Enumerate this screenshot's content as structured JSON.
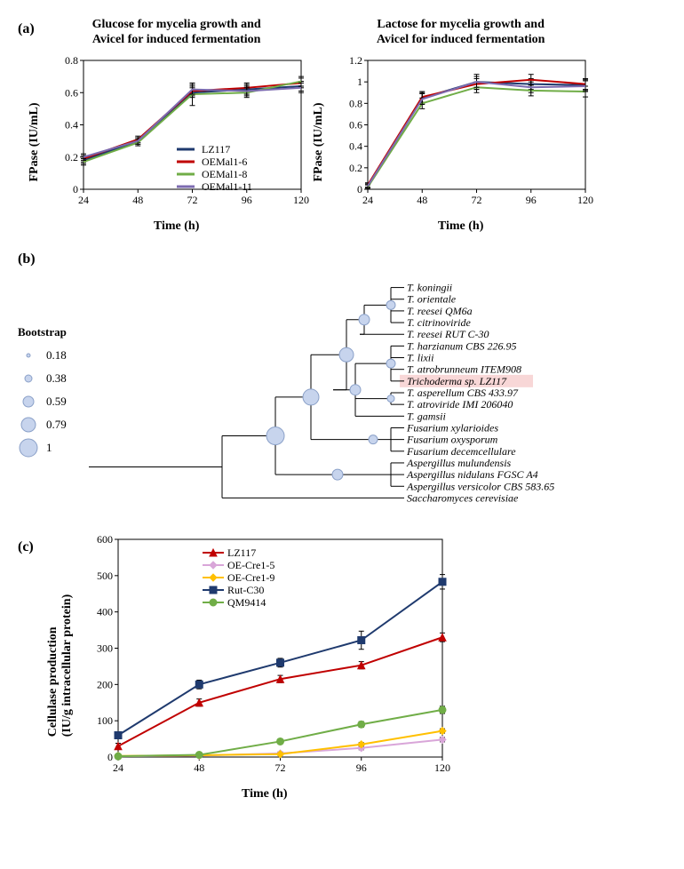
{
  "panel_a": {
    "label": "(a)",
    "chart_left": {
      "type": "line",
      "title_l1": "Glucose  for mycelia growth and",
      "title_l2": "Avicel for induced fermentation",
      "xlabel": "Time (h)",
      "ylabel": "FPase (IU/mL)",
      "x_ticks": [
        24,
        48,
        72,
        96,
        120
      ],
      "y_ticks": [
        0,
        0.2,
        0.4,
        0.6,
        0.8
      ],
      "ylim": [
        0,
        0.8
      ],
      "xlim": [
        24,
        120
      ],
      "background_color": "#ffffff",
      "border_color": "#000000",
      "series": [
        {
          "name": "LZ117",
          "color": "#1f3a6e",
          "values": [
            0.18,
            0.3,
            0.6,
            0.62,
            0.64
          ],
          "error": [
            0.02,
            0.02,
            0.03,
            0.03,
            0.03
          ]
        },
        {
          "name": "OEMal1-6",
          "color": "#c00000",
          "values": [
            0.19,
            0.31,
            0.61,
            0.63,
            0.66
          ],
          "error": [
            0.02,
            0.02,
            0.03,
            0.03,
            0.03
          ]
        },
        {
          "name": "OEMal1-8",
          "color": "#70ad47",
          "values": [
            0.17,
            0.29,
            0.59,
            0.6,
            0.67
          ],
          "error": [
            0.02,
            0.02,
            0.07,
            0.03,
            0.03
          ]
        },
        {
          "name": "OEMal1-11",
          "color": "#7c6bb0",
          "values": [
            0.2,
            0.3,
            0.62,
            0.61,
            0.63
          ],
          "error": [
            0.02,
            0.02,
            0.03,
            0.03,
            0.03
          ]
        }
      ],
      "legend_pos": "inner-lower-right",
      "line_width": 2
    },
    "chart_right": {
      "type": "line",
      "title_l1": "Lactose for mycelia growth and",
      "title_l2": "Avicel for induced fermentation",
      "xlabel": "Time (h)",
      "ylabel": "FPase (IU/mL)",
      "x_ticks": [
        24,
        48,
        72,
        96,
        120
      ],
      "y_ticks": [
        0.0,
        0.2,
        0.4,
        0.6,
        0.8,
        1.0,
        1.2
      ],
      "ylim": [
        0,
        1.2
      ],
      "xlim": [
        24,
        120
      ],
      "background_color": "#ffffff",
      "border_color": "#000000",
      "series": [
        {
          "name": "LZ117",
          "color": "#1f3a6e",
          "values": [
            0.03,
            0.85,
            1.0,
            0.98,
            0.97
          ],
          "error": [
            0.02,
            0.05,
            0.07,
            0.05,
            0.05
          ]
        },
        {
          "name": "OEMal1-6",
          "color": "#c00000",
          "values": [
            0.04,
            0.86,
            0.98,
            1.02,
            0.98
          ],
          "error": [
            0.02,
            0.05,
            0.05,
            0.05,
            0.05
          ]
        },
        {
          "name": "OEMal1-8",
          "color": "#70ad47",
          "values": [
            0.02,
            0.8,
            0.95,
            0.92,
            0.91
          ],
          "error": [
            0.02,
            0.05,
            0.05,
            0.05,
            0.05
          ]
        },
        {
          "name": "OEMal1-11",
          "color": "#7c6bb0",
          "values": [
            0.03,
            0.84,
            1.0,
            0.95,
            0.96
          ],
          "error": [
            0.02,
            0.05,
            0.05,
            0.05,
            0.05
          ]
        }
      ],
      "line_width": 2
    }
  },
  "panel_b": {
    "label": "(b)",
    "bootstrap": {
      "title": "Bootstrap",
      "levels": [
        {
          "value": 0.18,
          "radius": 2
        },
        {
          "value": 0.38,
          "radius": 4
        },
        {
          "value": 0.59,
          "radius": 6
        },
        {
          "value": 0.79,
          "radius": 8
        },
        {
          "value": 1,
          "radius": 10
        }
      ],
      "circle_color": "#c7d4ed"
    },
    "tree": {
      "type": "phylogenetic-tree",
      "highlight_color": "#f8d7d7",
      "node_color": "#c7d4ed",
      "line_color": "#000000",
      "labels": [
        "T. koningii",
        "T. orientale",
        "T. reesei QM6a",
        "T. citrinoviride",
        "T. reesei RUT C-30",
        "T. harzianum CBS 226.95",
        "T. lixii",
        "T. atrobrunneum ITEM908",
        "Trichoderma sp. LZ117",
        "T. asperellum CBS 433.97",
        "T. atroviride IMI 206040",
        "T. gamsii",
        "Fusarium xylarioides",
        "Fusarium oxysporum",
        "Fusarium decemcellulare",
        "Aspergillus mulundensis",
        "Aspergillus nidulans FGSC A4",
        "Aspergillus versicolor CBS 583.65",
        "Saccharomyces cerevisiae"
      ],
      "highlighted_label_index": 8
    }
  },
  "panel_c": {
    "label": "(c)",
    "chart": {
      "type": "line",
      "xlabel": "Time (h)",
      "ylabel_l1": "Cellulase production",
      "ylabel_l2": "(IU/g intracellular protein)",
      "x_ticks": [
        24,
        48,
        72,
        96,
        120
      ],
      "y_ticks": [
        0,
        100,
        200,
        300,
        400,
        500,
        600
      ],
      "ylim": [
        0,
        600
      ],
      "xlim": [
        24,
        120
      ],
      "background_color": "#ffffff",
      "border_color": "#000000",
      "series": [
        {
          "name": "LZ117",
          "color": "#c00000",
          "marker": "triangle",
          "values": [
            30,
            150,
            215,
            253,
            330
          ],
          "error": [
            8,
            10,
            10,
            10,
            12
          ]
        },
        {
          "name": "OE-Cre1-5",
          "color": "#d9a6d9",
          "marker": "diamond",
          "values": [
            2,
            4,
            10,
            25,
            48
          ],
          "error": [
            3,
            3,
            4,
            5,
            6
          ]
        },
        {
          "name": "OE-Cre1-9",
          "color": "#ffc000",
          "marker": "diamond",
          "values": [
            3,
            5,
            8,
            35,
            72
          ],
          "error": [
            3,
            3,
            4,
            5,
            6
          ]
        },
        {
          "name": "Rut-C30",
          "color": "#1f3a6e",
          "marker": "square",
          "values": [
            60,
            200,
            260,
            322,
            483
          ],
          "error": [
            8,
            12,
            12,
            25,
            20
          ]
        },
        {
          "name": "QM9414",
          "color": "#70ad47",
          "marker": "circle",
          "values": [
            2,
            6,
            43,
            90,
            130
          ],
          "error": [
            3,
            3,
            6,
            8,
            10
          ]
        }
      ],
      "legend_pos": "inner-upper-left",
      "line_width": 2,
      "marker_size": 8
    }
  }
}
